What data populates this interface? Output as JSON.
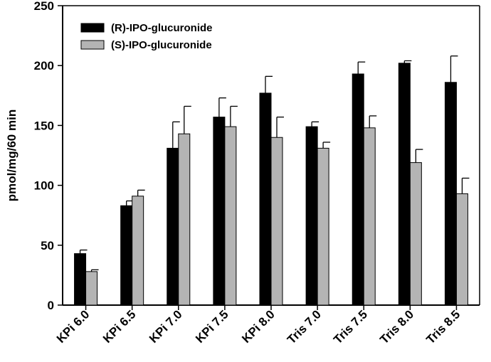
{
  "chart_data": {
    "type": "bar",
    "title": "",
    "xlabel": "",
    "ylabel": "pmol/mg/60 min",
    "ylim": [
      0,
      250
    ],
    "yticks": [
      0,
      50,
      100,
      150,
      200,
      250
    ],
    "categories": [
      "KPi 6.0",
      "KPi 6.5",
      "KPi 7.0",
      "KPi 7.5",
      "KPi 8.0",
      "Tris 7.0",
      "Tris 7.5",
      "Tris 8.0",
      "Tris 8.5"
    ],
    "series": [
      {
        "name": "(R)-IPO-glucuronide",
        "color": "#000000",
        "values": [
          43,
          83,
          131,
          157,
          177,
          149,
          193,
          202,
          186
        ],
        "errors": [
          3,
          4,
          22,
          16,
          14,
          4,
          10,
          2,
          22
        ]
      },
      {
        "name": "(S)-IPO-glucuronide",
        "color": "#b4b4b4",
        "values": [
          28,
          91,
          143,
          149,
          140,
          131,
          148,
          119,
          93
        ],
        "errors": [
          1.5,
          5,
          23,
          17,
          17,
          5,
          10,
          11,
          13
        ]
      }
    ],
    "legend_position": "top-left",
    "grid": false
  }
}
